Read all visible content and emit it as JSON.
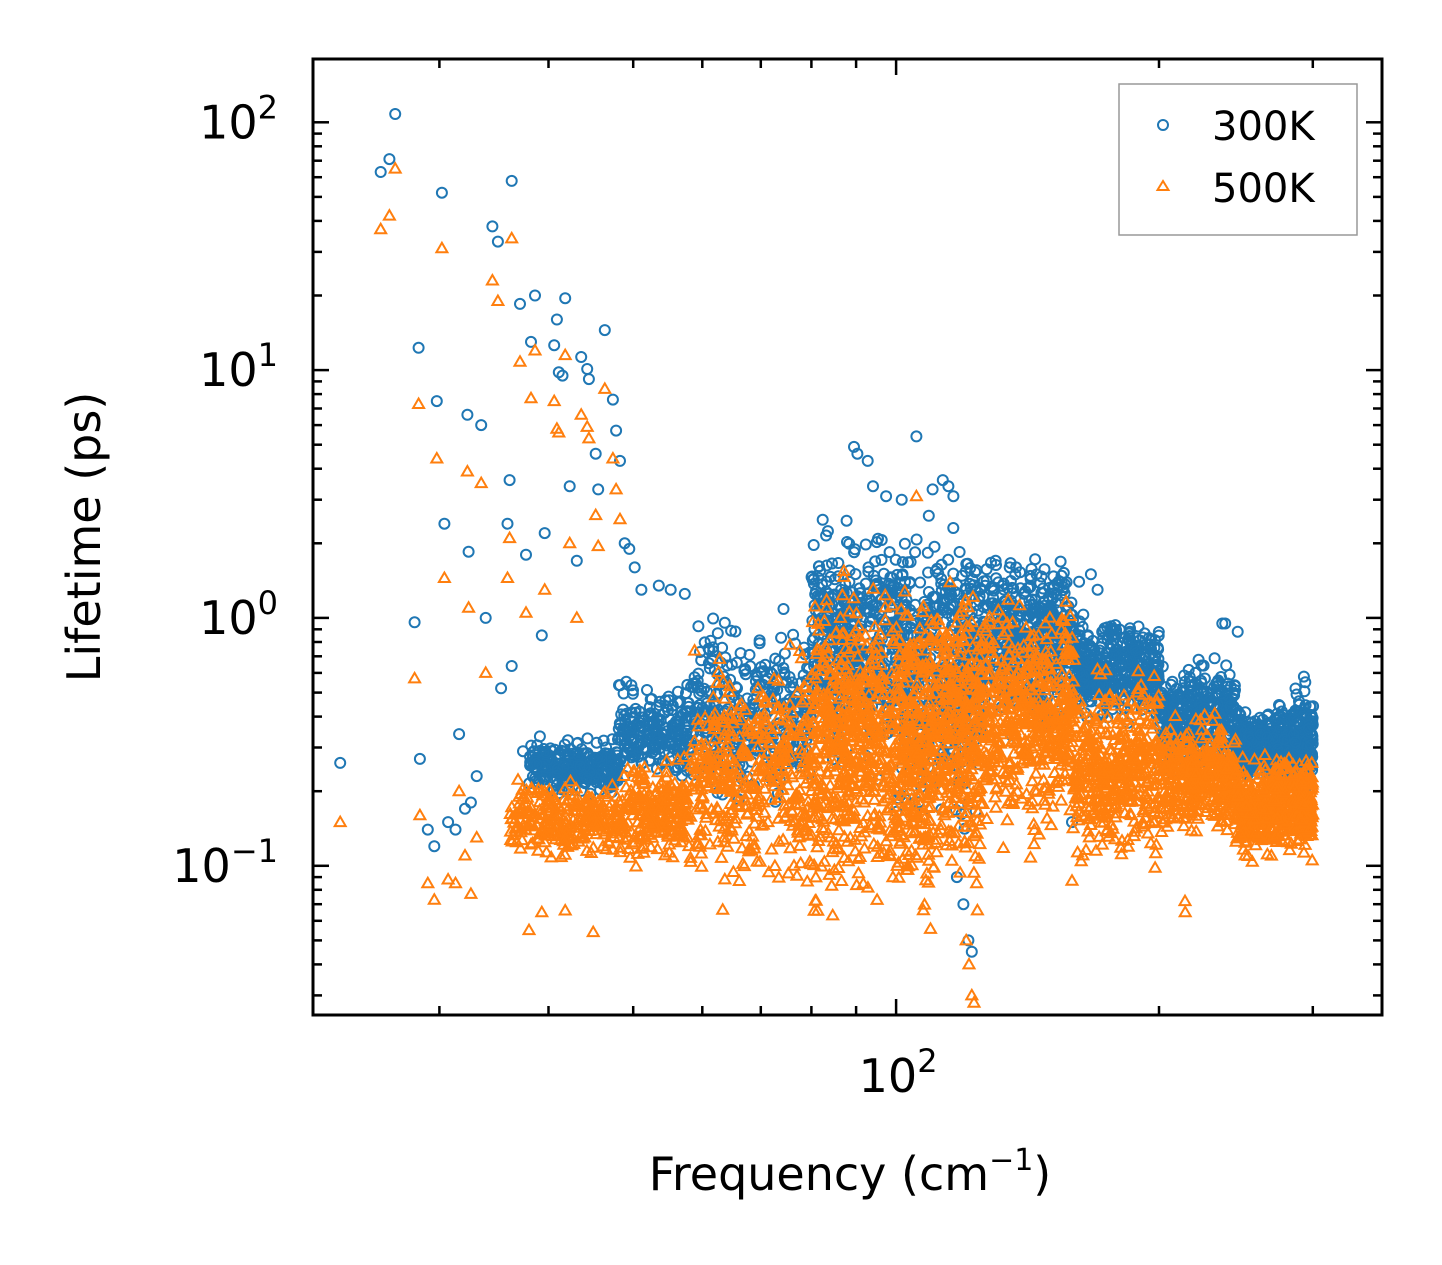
{
  "chart_data": {
    "type": "scatter",
    "xscale": "log",
    "yscale": "log",
    "xlabel": "Frequency (cm",
    "xlabel_sup": "−1",
    "xlabel_close": ")",
    "ylabel": "Lifetime (ps)",
    "xlim": [
      21.5,
      360
    ],
    "ylim": [
      0.025,
      180
    ],
    "x_ticks": [
      {
        "base": "10",
        "exp": "2",
        "value": 100
      }
    ],
    "y_ticks": [
      {
        "base": "10",
        "exp": "2",
        "value": 100
      },
      {
        "base": "10",
        "exp": "1",
        "value": 10
      },
      {
        "base": "10",
        "exp": "0",
        "value": 1
      },
      {
        "base": "10",
        "exp": "−1",
        "value": 0.1
      }
    ],
    "legend": {
      "placement": "top-right",
      "entries": [
        {
          "label": "300K",
          "marker": "circle",
          "color": "#1f77b4"
        },
        {
          "label": "500K",
          "marker": "triangle",
          "color": "#ff7f0e"
        }
      ]
    },
    "series": [
      {
        "name": "300K",
        "marker": "circle",
        "color": "#1f77b4",
        "points": [
          [
            23.1,
            0.26
          ],
          [
            25.7,
            63
          ],
          [
            26.3,
            71
          ],
          [
            26.7,
            108
          ],
          [
            28.1,
            0.96
          ],
          [
            28.4,
            12.3
          ],
          [
            28.5,
            0.27
          ],
          [
            29.1,
            0.14
          ],
          [
            29.6,
            0.12
          ],
          [
            29.8,
            7.5
          ],
          [
            30.2,
            52
          ],
          [
            30.4,
            2.4
          ],
          [
            30.7,
            0.15
          ],
          [
            31.3,
            0.14
          ],
          [
            31.6,
            0.34
          ],
          [
            32.1,
            0.17
          ],
          [
            32.3,
            6.6
          ],
          [
            32.4,
            1.85
          ],
          [
            32.6,
            0.18
          ],
          [
            33.1,
            0.23
          ],
          [
            33.5,
            6.0
          ],
          [
            33.9,
            1.0
          ],
          [
            34.5,
            38
          ],
          [
            35.0,
            33
          ],
          [
            35.3,
            0.52
          ],
          [
            35.9,
            2.4
          ],
          [
            36.1,
            3.6
          ],
          [
            36.3,
            0.64
          ],
          [
            36.3,
            58
          ],
          [
            37.1,
            18.5
          ],
          [
            37.4,
            0.29
          ],
          [
            37.7,
            1.8
          ],
          [
            38.2,
            13
          ],
          [
            38.6,
            20
          ],
          [
            39.3,
            0.85
          ],
          [
            39.6,
            2.2
          ],
          [
            40.6,
            12.6
          ],
          [
            40.9,
            16
          ],
          [
            41.1,
            9.8
          ],
          [
            41.5,
            9.5
          ],
          [
            41.8,
            19.5
          ],
          [
            42.3,
            3.4
          ],
          [
            43.1,
            1.7
          ],
          [
            43.6,
            11.3
          ],
          [
            44.3,
            10.1
          ],
          [
            44.5,
            9.2
          ],
          [
            45.3,
            4.6
          ],
          [
            45.6,
            3.3
          ],
          [
            46.4,
            14.5
          ],
          [
            47.4,
            7.6
          ],
          [
            47.8,
            5.7
          ],
          [
            48.3,
            4.3
          ],
          [
            48.9,
            2.0
          ],
          [
            49.5,
            1.9
          ],
          [
            50.2,
            1.6
          ],
          [
            51.1,
            1.3
          ],
          [
            52.3,
            0.38
          ],
          [
            53.5,
            1.35
          ],
          [
            55.2,
            1.3
          ],
          [
            57.3,
            1.25
          ],
          [
            89.5,
            4.9
          ],
          [
            90.3,
            4.6
          ],
          [
            92.8,
            4.3
          ],
          [
            94.1,
            3.4
          ],
          [
            97.4,
            3.1
          ],
          [
            101.5,
            3.0
          ],
          [
            105.5,
            5.4
          ],
          [
            110.1,
            3.3
          ],
          [
            113.1,
            3.6
          ],
          [
            114.8,
            3.4
          ],
          [
            116.3,
            3.1
          ],
          [
            130.0,
            1.7
          ],
          [
            137.2,
            1.6
          ],
          [
            162.0,
            1.4
          ],
          [
            167.1,
            1.5
          ],
          [
            170.1,
            1.3
          ],
          [
            236.3,
            0.95
          ],
          [
            238.1,
            0.95
          ],
          [
            246.1,
            0.88
          ],
          [
            293.0,
            0.58
          ],
          [
            294.1,
            0.55
          ],
          [
            300.2,
            0.44
          ],
          [
            117.4,
            0.09
          ],
          [
            119.4,
            0.07
          ],
          [
            121.0,
            0.05
          ],
          [
            122.1,
            0.045
          ],
          [
            159.0,
            0.15
          ]
        ],
        "clusters": [
          {
            "x": [
              38,
              48
            ],
            "y": [
              0.18,
              0.35
            ],
            "n": 260
          },
          {
            "x": [
              48,
              58
            ],
            "y": [
              0.2,
              0.6
            ],
            "n": 220
          },
          {
            "x": [
              58,
              80
            ],
            "y": [
              0.15,
              1.2
            ],
            "n": 350
          },
          {
            "x": [
              80,
              100
            ],
            "y": [
              0.2,
              3.0
            ],
            "n": 450
          },
          {
            "x": [
              100,
              125
            ],
            "y": [
              0.12,
              3.0
            ],
            "n": 550
          },
          {
            "x": [
              125,
              160
            ],
            "y": [
              0.3,
              2.2
            ],
            "n": 480
          },
          {
            "x": [
              160,
              200
            ],
            "y": [
              0.35,
              1.1
            ],
            "n": 420
          },
          {
            "x": [
              200,
              245
            ],
            "y": [
              0.2,
              0.75
            ],
            "n": 380
          },
          {
            "x": [
              245,
              285
            ],
            "y": [
              0.2,
              0.48
            ],
            "n": 350
          },
          {
            "x": [
              285,
              300
            ],
            "y": [
              0.18,
              0.58
            ],
            "n": 160
          }
        ]
      },
      {
        "name": "500K",
        "marker": "triangle",
        "color": "#ff7f0e",
        "points": [
          [
            23.1,
            0.15
          ],
          [
            25.7,
            37
          ],
          [
            26.3,
            42
          ],
          [
            26.7,
            65
          ],
          [
            28.1,
            0.57
          ],
          [
            28.4,
            7.3
          ],
          [
            28.5,
            0.16
          ],
          [
            29.1,
            0.085
          ],
          [
            29.6,
            0.073
          ],
          [
            29.8,
            4.4
          ],
          [
            30.2,
            31
          ],
          [
            30.4,
            1.45
          ],
          [
            30.7,
            0.088
          ],
          [
            31.3,
            0.085
          ],
          [
            31.6,
            0.2
          ],
          [
            32.1,
            0.11
          ],
          [
            32.3,
            3.9
          ],
          [
            32.4,
            1.1
          ],
          [
            32.6,
            0.077
          ],
          [
            33.1,
            0.13
          ],
          [
            33.5,
            3.5
          ],
          [
            33.9,
            0.6
          ],
          [
            34.5,
            23
          ],
          [
            35.0,
            19
          ],
          [
            35.9,
            1.45
          ],
          [
            36.1,
            2.1
          ],
          [
            36.3,
            34
          ],
          [
            37.1,
            10.8
          ],
          [
            37.4,
            0.17
          ],
          [
            37.7,
            1.05
          ],
          [
            38.2,
            7.7
          ],
          [
            38.6,
            12
          ],
          [
            39.6,
            1.3
          ],
          [
            40.6,
            7.5
          ],
          [
            40.9,
            5.8
          ],
          [
            41.1,
            5.6
          ],
          [
            41.8,
            11.5
          ],
          [
            42.3,
            2.0
          ],
          [
            43.1,
            1.0
          ],
          [
            43.6,
            6.6
          ],
          [
            44.3,
            5.9
          ],
          [
            44.5,
            5.3
          ],
          [
            45.3,
            2.6
          ],
          [
            45.6,
            1.95
          ],
          [
            46.4,
            8.4
          ],
          [
            47.4,
            4.4
          ],
          [
            47.8,
            3.3
          ],
          [
            48.3,
            2.5
          ],
          [
            39.3,
            0.065
          ],
          [
            38.0,
            0.055
          ],
          [
            41.8,
            0.066
          ],
          [
            45.0,
            0.054
          ],
          [
            105.5,
            3.1
          ],
          [
            120.3,
            0.05
          ],
          [
            121.2,
            0.04
          ],
          [
            122.1,
            0.03
          ],
          [
            122.8,
            0.028
          ],
          [
            159.0,
            0.087
          ],
          [
            214.2,
            0.072
          ],
          [
            214.3,
            0.065
          ]
        ],
        "clusters": [
          {
            "x": [
              36,
              48
            ],
            "y": [
              0.1,
              0.25
            ],
            "n": 260
          },
          {
            "x": [
              48,
              58
            ],
            "y": [
              0.09,
              0.3
            ],
            "n": 240
          },
          {
            "x": [
              58,
              80
            ],
            "y": [
              0.06,
              0.95
            ],
            "n": 420
          },
          {
            "x": [
              80,
              100
            ],
            "y": [
              0.045,
              1.9
            ],
            "n": 560
          },
          {
            "x": [
              100,
              125
            ],
            "y": [
              0.05,
              2.0
            ],
            "n": 650
          },
          {
            "x": [
              125,
              160
            ],
            "y": [
              0.1,
              1.6
            ],
            "n": 520
          },
          {
            "x": [
              160,
              200
            ],
            "y": [
              0.09,
              0.7
            ],
            "n": 420
          },
          {
            "x": [
              200,
              245
            ],
            "y": [
              0.12,
              0.45
            ],
            "n": 380
          },
          {
            "x": [
              245,
              285
            ],
            "y": [
              0.1,
              0.3
            ],
            "n": 360
          },
          {
            "x": [
              285,
              300
            ],
            "y": [
              0.1,
              0.3
            ],
            "n": 170
          }
        ]
      }
    ]
  }
}
